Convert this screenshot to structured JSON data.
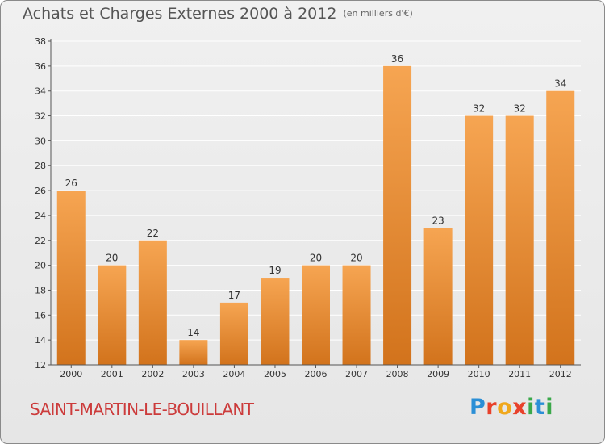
{
  "title": "Achats et Charges Externes 2000 à 2012",
  "unit": "(en milliers d'€)",
  "place": "SAINT-MARTIN-LE-BOUILLANT",
  "logo": {
    "text": "Proxiti",
    "letters": [
      {
        "ch": "P",
        "color": "#2b8fd6"
      },
      {
        "ch": "r",
        "color": "#e8412b"
      },
      {
        "ch": "o",
        "color": "#f0a81c"
      },
      {
        "ch": "x",
        "color": "#e8412b"
      },
      {
        "ch": "i",
        "color": "#3aa84a"
      },
      {
        "ch": "t",
        "color": "#2b8fd6"
      },
      {
        "ch": "i",
        "color": "#3aa84a"
      }
    ]
  },
  "colors": {
    "bar_light": "#f6a552",
    "bar_dark": "#d2731c",
    "grid": "#ffffff",
    "axis": "#555555"
  },
  "chart_data": {
    "type": "bar",
    "title": "Achats et Charges Externes 2000 à 2012",
    "xlabel": "",
    "ylabel": "",
    "categories": [
      "2000",
      "2001",
      "2002",
      "2003",
      "2004",
      "2005",
      "2006",
      "2007",
      "2008",
      "2009",
      "2010",
      "2011",
      "2012"
    ],
    "values": [
      26,
      20,
      22,
      14,
      17,
      19,
      20,
      20,
      36,
      23,
      32,
      32,
      34
    ],
    "ylim": [
      12,
      38
    ],
    "yticks": [
      12,
      14,
      16,
      18,
      20,
      22,
      24,
      26,
      28,
      30,
      32,
      34,
      36,
      38
    ],
    "grid": true,
    "legend": "none"
  }
}
